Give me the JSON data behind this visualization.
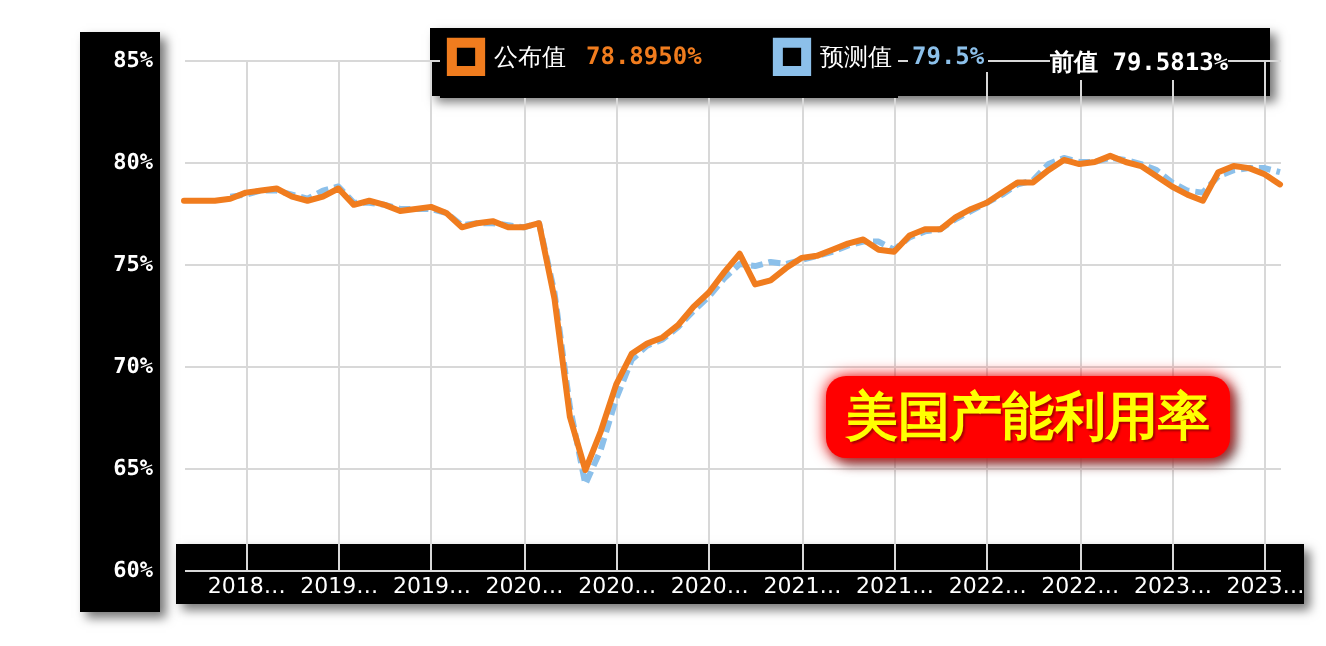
{
  "chart_data": {
    "type": "line",
    "title": "美国产能利用率",
    "annotations": [
      "78.8950%",
      "79.5%",
      "前值 79.5813%"
    ],
    "categories": [
      null,
      null,
      null,
      null,
      "2018…",
      null,
      null,
      null,
      null,
      null,
      "2019…",
      null,
      null,
      null,
      null,
      null,
      "2019…",
      null,
      null,
      null,
      null,
      null,
      "2020…",
      null,
      null,
      null,
      null,
      null,
      "2020…",
      null,
      null,
      null,
      null,
      null,
      "2020…",
      null,
      null,
      null,
      null,
      null,
      "2021…",
      null,
      null,
      null,
      null,
      null,
      "2021…",
      null,
      null,
      null,
      null,
      null,
      "2022…",
      null,
      null,
      null,
      null,
      null,
      "2022…",
      null,
      null,
      null,
      null,
      null,
      "2023…",
      null,
      null,
      null,
      null,
      null,
      "2023…",
      null
    ],
    "series": [
      {
        "name": "公布值",
        "color": "#f07c1e",
        "line_style": "solid",
        "values": [
          78.1,
          78.1,
          78.1,
          78.2,
          78.5,
          78.6,
          78.7,
          78.3,
          78.1,
          78.3,
          78.7,
          77.9,
          78.1,
          77.9,
          77.6,
          77.7,
          77.8,
          77.5,
          76.8,
          77.0,
          77.1,
          76.8,
          76.8,
          77.0,
          73.3,
          67.5,
          64.9,
          66.8,
          69.1,
          70.6,
          71.1,
          71.4,
          72.0,
          72.9,
          73.6,
          74.6,
          75.5,
          74.0,
          74.2,
          74.8,
          75.3,
          75.4,
          75.7,
          76.0,
          76.2,
          75.7,
          75.6,
          76.4,
          76.7,
          76.7,
          77.3,
          77.7,
          78.0,
          78.5,
          79.0,
          79.0,
          79.6,
          80.1,
          79.9,
          80.0,
          80.3,
          80.0,
          79.8,
          79.3,
          78.8,
          78.4,
          78.1,
          79.5,
          79.8,
          79.7,
          79.4,
          78.9
        ]
      },
      {
        "name": "预测值",
        "color": "#8cc0ea",
        "line_style": "dashed",
        "values": [
          null,
          null,
          null,
          78.3,
          78.4,
          78.6,
          78.6,
          78.4,
          78.2,
          78.6,
          78.8,
          78.0,
          78.0,
          77.9,
          77.7,
          77.7,
          77.7,
          77.5,
          76.9,
          77.0,
          77.0,
          76.9,
          76.8,
          77.0,
          73.6,
          68.0,
          64.2,
          65.9,
          68.4,
          70.3,
          71.0,
          71.3,
          71.9,
          72.7,
          73.4,
          74.3,
          75.0,
          74.9,
          75.1,
          75.0,
          75.2,
          75.4,
          75.6,
          75.9,
          76.1,
          76.1,
          75.7,
          76.3,
          76.6,
          76.7,
          77.2,
          77.6,
          78.0,
          78.4,
          78.9,
          79.1,
          79.9,
          80.2,
          80.0,
          80.0,
          80.2,
          80.1,
          79.9,
          79.6,
          79.0,
          78.6,
          78.5,
          79.3,
          79.6,
          79.7,
          79.7,
          79.5
        ]
      }
    ],
    "ylim": [
      60,
      85
    ],
    "yticks": [
      {
        "value": 60,
        "label": "60%"
      },
      {
        "value": 65,
        "label": "65%"
      },
      {
        "value": 70,
        "label": "70%"
      },
      {
        "value": 75,
        "label": "75%"
      },
      {
        "value": 80,
        "label": "80%"
      },
      {
        "value": 85,
        "label": "85%"
      }
    ],
    "grid": true,
    "legend": "top"
  }
}
